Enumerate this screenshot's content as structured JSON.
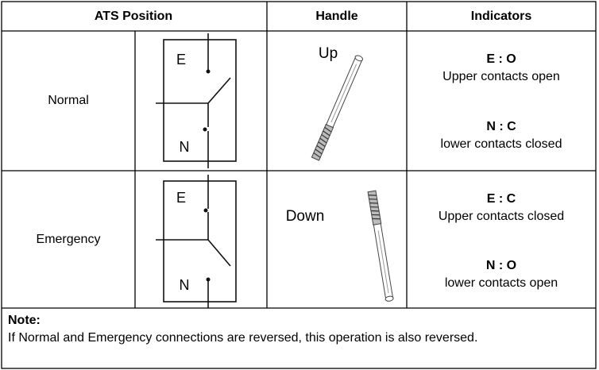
{
  "table": {
    "header": [
      "ATS Position",
      "Handle",
      "Indicators"
    ],
    "rows": [
      {
        "position": "Normal",
        "symbol_labels": [
          "E",
          "N"
        ],
        "handle": "Up",
        "indicators": [
          {
            "code": "E : O",
            "text": "Upper contacts open"
          },
          {
            "code": "N : C",
            "text": "lower contacts closed"
          }
        ]
      },
      {
        "position": "Emergency",
        "symbol_labels": [
          "E",
          "N"
        ],
        "handle": "Down",
        "indicators": [
          {
            "code": "E : C",
            "text": "Upper contacts closed"
          },
          {
            "code": "N : O",
            "text": "lower contacts open"
          }
        ]
      }
    ]
  },
  "note": {
    "title": "Note:",
    "text": "If Normal and Emergency connections are reversed, this operation is also reversed."
  }
}
